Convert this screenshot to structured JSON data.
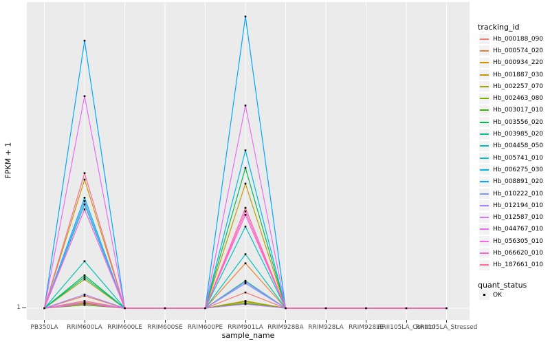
{
  "figure": {
    "panel_background": "#EBEBEB",
    "gridline_color": "#FFFFFF",
    "axis_text_color": "#4D4D4D",
    "point_color": "#000000"
  },
  "chart_data": {
    "type": "line",
    "title": "",
    "xlabel": "sample_name",
    "ylabel": "FPKM + 1",
    "y_tick_labels": [
      "1"
    ],
    "grid": "vertical-major-white-on-gray",
    "legend_position": "right",
    "point_marker": "small black square at every data point",
    "categories": [
      "PB350LA",
      "RRIM600LA",
      "RRIM600LE",
      "RRIM600SE",
      "RRIM600PE",
      "RRIM901LA",
      "RRIM928BA",
      "RRIM928LA",
      "RRIM928LE",
      "RRII105LA_Control",
      "RRII105LA_Stressed"
    ],
    "y_axis_note": "only tick shown is 1 at the baseline; series values stored as estimated height fraction of tallest peak (0 = baseline y=1, 1 = max)",
    "series": [
      {
        "name": "Hb_000188_090",
        "color": "#F8766D",
        "heights": [
          0,
          0.025,
          0,
          0,
          0,
          0.054,
          0,
          0,
          0,
          0,
          0
        ]
      },
      {
        "name": "Hb_000574_020",
        "color": "#EA8331",
        "heights": [
          0,
          0.042,
          0,
          0,
          0,
          0.154,
          0,
          0,
          0,
          0,
          0
        ]
      },
      {
        "name": "Hb_000934_220",
        "color": "#D89000",
        "heights": [
          0,
          0.018,
          0,
          0,
          0,
          0.025,
          0,
          0,
          0,
          0,
          0
        ]
      },
      {
        "name": "Hb_001887_030",
        "color": "#C09B00",
        "heights": [
          0,
          0.441,
          0,
          0,
          0,
          0.427,
          0,
          0,
          0,
          0,
          0
        ]
      },
      {
        "name": "Hb_002257_070",
        "color": "#A3A500",
        "heights": [
          0,
          0.099,
          0,
          0,
          0,
          0.018,
          0,
          0,
          0,
          0,
          0
        ]
      },
      {
        "name": "Hb_002463_080",
        "color": "#7CAE00",
        "heights": [
          0,
          0.016,
          0,
          0,
          0,
          0.023,
          0,
          0,
          0,
          0,
          0
        ]
      },
      {
        "name": "Hb_003017_010",
        "color": "#39B600",
        "heights": [
          0,
          0.011,
          0,
          0,
          0,
          0.016,
          0,
          0,
          0,
          0,
          0
        ]
      },
      {
        "name": "Hb_003556_020",
        "color": "#00BB4E",
        "heights": [
          0,
          0.113,
          0,
          0,
          0,
          0.481,
          0,
          0,
          0,
          0,
          0
        ]
      },
      {
        "name": "Hb_003985_020",
        "color": "#00C087",
        "heights": [
          0,
          0.106,
          0,
          0,
          0,
          0.094,
          0,
          0,
          0,
          0,
          0
        ]
      },
      {
        "name": "Hb_004458_050",
        "color": "#00C0B4",
        "heights": [
          0,
          0.161,
          0,
          0,
          0,
          0.185,
          0,
          0,
          0,
          0,
          0
        ]
      },
      {
        "name": "Hb_005741_010",
        "color": "#00BFC4",
        "heights": [
          0,
          0.356,
          0,
          0,
          0,
          0.28,
          0,
          0,
          0,
          0,
          0
        ]
      },
      {
        "name": "Hb_006275_030",
        "color": "#00B5EC",
        "heights": [
          0,
          0.379,
          0,
          0,
          0,
          0.541,
          0,
          0,
          0,
          0,
          0
        ]
      },
      {
        "name": "Hb_008891_020",
        "color": "#00A6FF",
        "heights": [
          0,
          0.917,
          0,
          0,
          0,
          1.0,
          0,
          0,
          0,
          0,
          0
        ]
      },
      {
        "name": "Hb_010222_010",
        "color": "#7C96FF",
        "heights": [
          0,
          0.367,
          0,
          0,
          0,
          0.085,
          0,
          0,
          0,
          0,
          0
        ]
      },
      {
        "name": "Hb_012194_010",
        "color": "#A983FF",
        "heights": [
          0,
          0.047,
          0,
          0,
          0,
          0.09,
          0,
          0,
          0,
          0,
          0
        ]
      },
      {
        "name": "Hb_012587_010",
        "color": "#C77CFF",
        "heights": [
          0,
          0.021,
          0,
          0,
          0,
          0.014,
          0,
          0,
          0,
          0,
          0
        ]
      },
      {
        "name": "Hb_044767_010",
        "color": "#E76BF3",
        "heights": [
          0,
          0.727,
          0,
          0,
          0,
          0.695,
          0,
          0,
          0,
          0,
          0
        ]
      },
      {
        "name": "Hb_056305_010",
        "color": "#F763E0",
        "heights": [
          0,
          0.339,
          0,
          0,
          0,
          0.332,
          0,
          0,
          0,
          0,
          0
        ]
      },
      {
        "name": "Hb_066620_010",
        "color": "#FF61C7",
        "heights": [
          0,
          0.014,
          0,
          0,
          0,
          0.32,
          0,
          0,
          0,
          0,
          0
        ]
      },
      {
        "name": "Hb_187661_010",
        "color": "#FF6A99",
        "heights": [
          0,
          0.463,
          0,
          0,
          0,
          0.344,
          0,
          0,
          0,
          0,
          0
        ]
      }
    ]
  },
  "legend": {
    "tracking_title": "tracking_id",
    "quant_title": "quant_status",
    "quant_items": [
      {
        "label": "OK"
      }
    ]
  }
}
